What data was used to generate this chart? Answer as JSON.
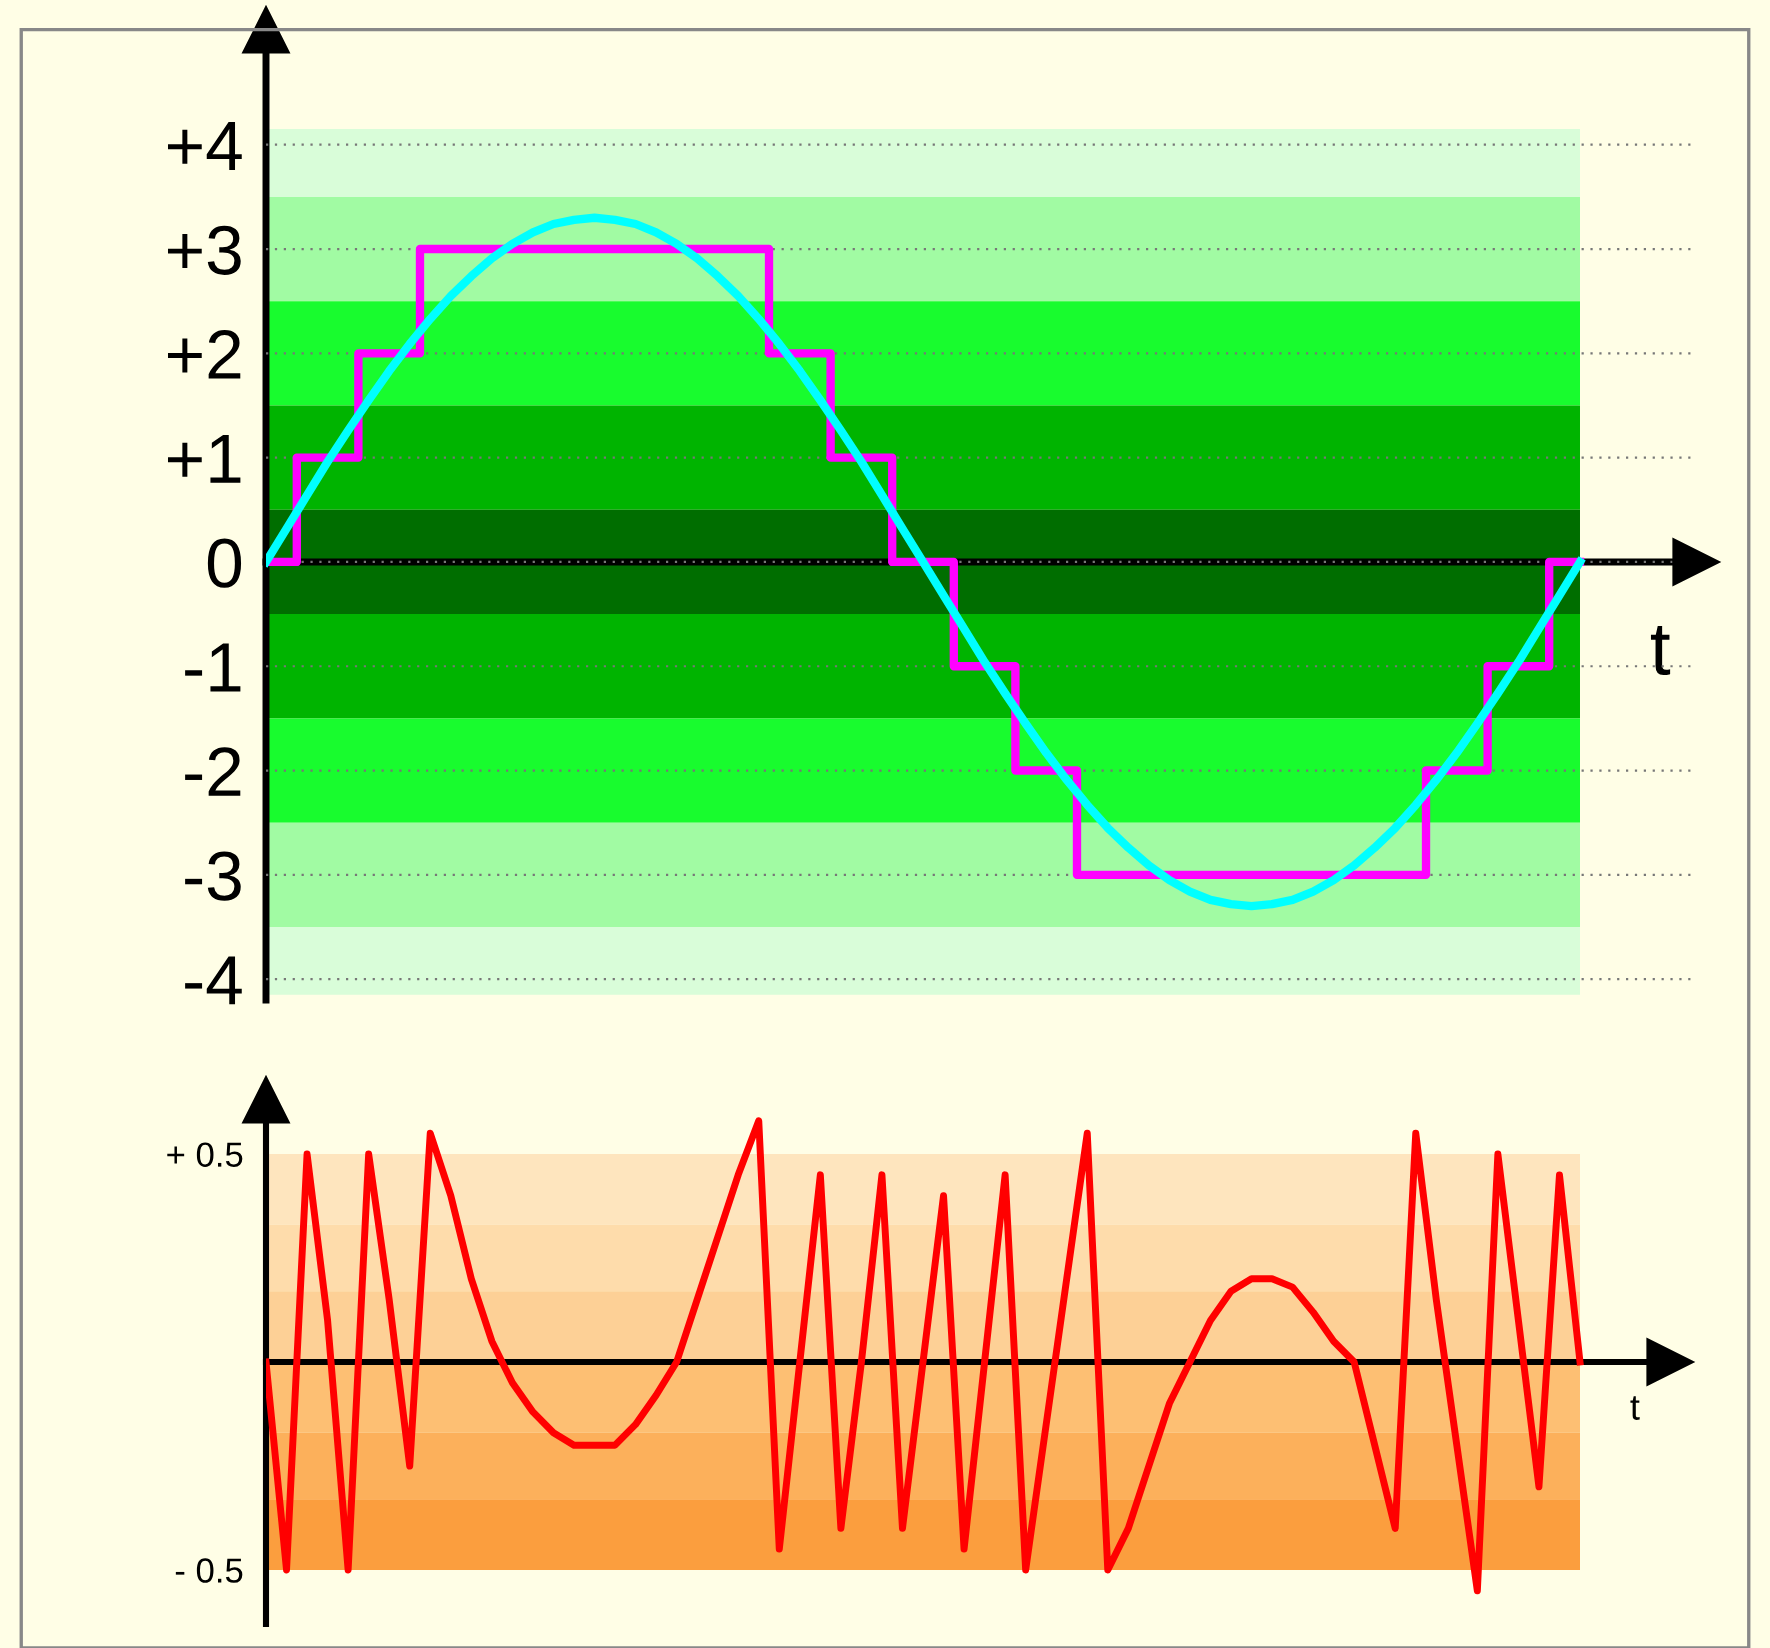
{
  "chart_data": [
    {
      "type": "line",
      "xlabel": "t",
      "tick_labels": "y",
      "grid": "y",
      "categories": [
        null,
        null,
        null,
        null,
        null,
        null,
        null,
        null,
        null,
        null,
        null,
        null,
        null,
        null,
        null,
        null,
        null,
        null,
        null,
        null,
        null,
        null,
        null,
        null,
        null,
        null,
        null,
        null,
        null,
        null,
        null,
        null,
        null,
        null,
        null,
        null,
        null,
        null,
        null,
        null,
        null,
        null,
        null,
        null,
        null,
        null,
        null,
        null,
        null,
        null,
        null,
        null,
        null,
        null,
        null,
        null,
        null,
        null,
        null,
        null,
        null,
        null,
        null,
        null,
        null
      ],
      "ylim": [
        -4.2,
        5.1
      ],
      "yticks": [
        {
          "value": 4,
          "label": "+4"
        },
        {
          "value": 3,
          "label": "+3"
        },
        {
          "value": 2,
          "label": "+2"
        },
        {
          "value": 1,
          "label": "+1"
        },
        0,
        -1,
        -2,
        -3,
        -4
      ],
      "bands": [
        {
          "axis": "y",
          "from": 3.5,
          "to": 4.15,
          "color": "#d9fdd9"
        },
        {
          "axis": "y",
          "from": 2.5,
          "to": 3.5,
          "color": "#a1fba3"
        },
        {
          "axis": "y",
          "from": 1.5,
          "to": 2.5,
          "color": "#18fc2e"
        },
        {
          "axis": "y",
          "from": 0.5,
          "to": 1.5,
          "color": "#00b400"
        },
        {
          "axis": "y",
          "from": -0.5,
          "to": 0.5,
          "color": "#006e00"
        },
        {
          "axis": "y",
          "from": -1.5,
          "to": -0.5,
          "color": "#00b400"
        },
        {
          "axis": "y",
          "from": -2.5,
          "to": -1.5,
          "color": "#18fc2e"
        },
        {
          "axis": "y",
          "from": -3.5,
          "to": -2.5,
          "color": "#a1fba3"
        },
        {
          "axis": "y",
          "from": -4.15,
          "to": -3.5,
          "color": "#d9fdd9"
        }
      ],
      "series": [
        {
          "type": "step",
          "color": "#ff00ff",
          "values": [
            0,
            0,
            1,
            1,
            1,
            2,
            2,
            2,
            3,
            3,
            3,
            3,
            3,
            3,
            3,
            3,
            3,
            3,
            3,
            3,
            3,
            3,
            3,
            3,
            3,
            2,
            2,
            2,
            1,
            1,
            1,
            0,
            0,
            0,
            -1,
            -1,
            -1,
            -2,
            -2,
            -2,
            -3,
            -3,
            -3,
            -3,
            -3,
            -3,
            -3,
            -3,
            -3,
            -3,
            -3,
            -3,
            -3,
            -3,
            -3,
            -3,
            -3,
            -2,
            -2,
            -2,
            -1,
            -1,
            -1,
            0,
            0
          ]
        },
        {
          "type": "line",
          "color": "#00ffff",
          "values": [
            0,
            0.32,
            0.64,
            0.96,
            1.26,
            1.55,
            1.83,
            2.09,
            2.33,
            2.55,
            2.74,
            2.91,
            3.05,
            3.16,
            3.24,
            3.28,
            3.3,
            3.28,
            3.24,
            3.16,
            3.05,
            2.91,
            2.74,
            2.55,
            2.33,
            2.09,
            1.83,
            1.55,
            1.26,
            0.96,
            0.64,
            0.32,
            0,
            -0.32,
            -0.64,
            -0.96,
            -1.26,
            -1.55,
            -1.83,
            -2.09,
            -2.33,
            -2.55,
            -2.74,
            -2.91,
            -3.05,
            -3.16,
            -3.24,
            -3.28,
            -3.3,
            -3.28,
            -3.24,
            -3.16,
            -3.05,
            -2.91,
            -2.74,
            -2.55,
            -2.33,
            -2.09,
            -1.83,
            -1.55,
            -1.26,
            -0.96,
            -0.64,
            -0.32,
            0
          ]
        }
      ]
    },
    {
      "type": "line",
      "xlabel": "t",
      "tick_labels": "y",
      "categories": [
        null,
        null,
        null,
        null,
        null,
        null,
        null,
        null,
        null,
        null,
        null,
        null,
        null,
        null,
        null,
        null,
        null,
        null,
        null,
        null,
        null,
        null,
        null,
        null,
        null,
        null,
        null,
        null,
        null,
        null,
        null,
        null,
        null,
        null,
        null,
        null,
        null,
        null,
        null,
        null,
        null,
        null,
        null,
        null,
        null,
        null,
        null,
        null,
        null,
        null,
        null,
        null,
        null,
        null,
        null,
        null,
        null,
        null,
        null,
        null,
        null,
        null,
        null,
        null,
        null
      ],
      "ylim": [
        -0.63,
        0.63
      ],
      "yticks": [
        {
          "value": 0.5,
          "label": "+ 0.5"
        },
        {
          "value": -0.5,
          "label": "- 0.5"
        }
      ],
      "bands": [
        {
          "axis": "y",
          "from": 0.33,
          "to": 0.5,
          "color": "#fee5be"
        },
        {
          "axis": "y",
          "from": 0.17,
          "to": 0.33,
          "color": "#fedcab"
        },
        {
          "axis": "y",
          "from": 0,
          "to": 0.17,
          "color": "#fdd096"
        },
        {
          "axis": "y",
          "from": -0.17,
          "to": 0,
          "color": "#fdbf73"
        },
        {
          "axis": "y",
          "from": -0.33,
          "to": -0.17,
          "color": "#fcb05b"
        },
        {
          "axis": "y",
          "from": -0.5,
          "to": -0.33,
          "color": "#fb9e3e"
        }
      ],
      "series": [
        {
          "color": "#ff0000",
          "values": [
            0,
            -0.5,
            0.5,
            0.1,
            -0.5,
            0.5,
            0.15,
            -0.25,
            0.55,
            0.4,
            0.2,
            0.05,
            -0.05,
            -0.12,
            -0.17,
            -0.2,
            -0.2,
            -0.2,
            -0.15,
            -0.08,
            0,
            0.15,
            0.3,
            0.45,
            0.58,
            -0.45,
            0,
            0.45,
            -0.4,
            0,
            0.45,
            -0.4,
            0,
            0.4,
            -0.45,
            0,
            0.45,
            -0.5,
            -0.15,
            0.2,
            0.55,
            -0.5,
            -0.4,
            -0.25,
            -0.1,
            0,
            0.1,
            0.17,
            0.2,
            0.2,
            0.18,
            0.12,
            0.05,
            0,
            -0.2,
            -0.4,
            0.55,
            0.15,
            -0.2,
            -0.55,
            0.5,
            0.1,
            -0.3,
            0.45,
            0
          ]
        }
      ]
    }
  ]
}
